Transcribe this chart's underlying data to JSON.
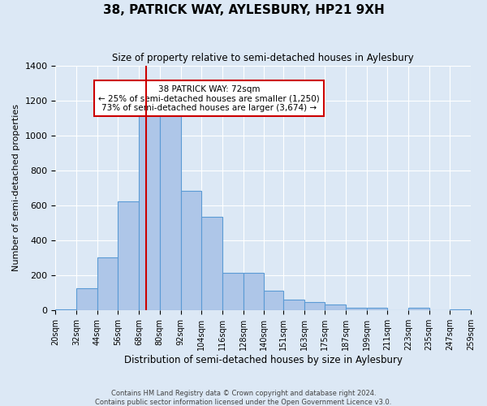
{
  "title": "38, PATRICK WAY, AYLESBURY, HP21 9XH",
  "subtitle": "Size of property relative to semi-detached houses in Aylesbury",
  "xlabel": "Distribution of semi-detached houses by size in Aylesbury",
  "ylabel": "Number of semi-detached properties",
  "footer_line1": "Contains HM Land Registry data © Crown copyright and database right 2024.",
  "footer_line2": "Contains public sector information licensed under the Open Government Licence v3.0.",
  "bins": [
    20,
    32,
    44,
    56,
    68,
    80,
    92,
    104,
    116,
    128,
    140,
    151,
    163,
    175,
    187,
    199,
    211,
    223,
    235,
    247,
    259
  ],
  "bin_labels": [
    "20sqm",
    "32sqm",
    "44sqm",
    "56sqm",
    "68sqm",
    "80sqm",
    "92sqm",
    "104sqm",
    "116sqm",
    "128sqm",
    "140sqm",
    "151sqm",
    "163sqm",
    "175sqm",
    "187sqm",
    "199sqm",
    "211sqm",
    "223sqm",
    "235sqm",
    "247sqm",
    "259sqm"
  ],
  "counts": [
    5,
    125,
    305,
    625,
    1145,
    1165,
    685,
    535,
    215,
    215,
    115,
    60,
    50,
    35,
    15,
    15,
    0,
    15,
    0,
    5
  ],
  "bar_color": "#aec6e8",
  "bar_edge_color": "#5b9bd5",
  "property_value": 72,
  "vline_color": "#cc0000",
  "annotation_box_edge": "#cc0000",
  "annotation_text_line1": "38 PATRICK WAY: 72sqm",
  "annotation_text_line2": "← 25% of semi-detached houses are smaller (1,250)",
  "annotation_text_line3": "73% of semi-detached houses are larger (3,674) →",
  "ylim": [
    0,
    1400
  ],
  "yticks": [
    0,
    200,
    400,
    600,
    800,
    1000,
    1200,
    1400
  ],
  "background_color": "#dce8f5",
  "plot_background": "#dce8f5"
}
